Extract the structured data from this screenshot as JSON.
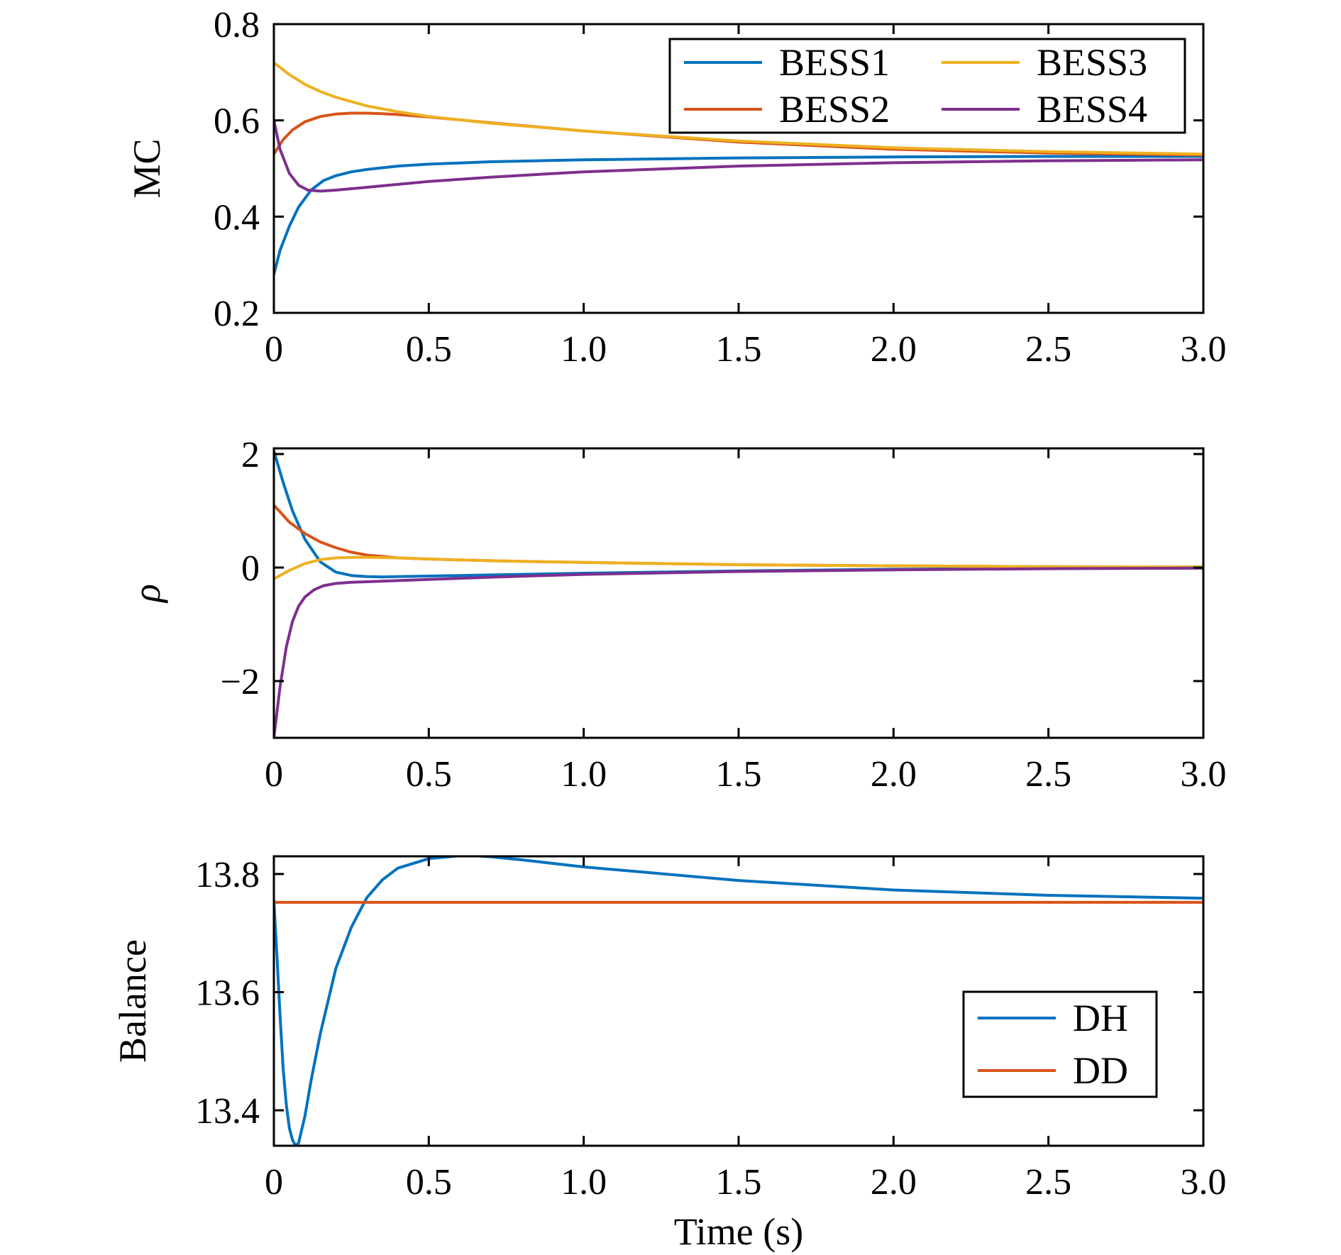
{
  "figure": {
    "xlabel": "Time (s)"
  },
  "chart_data": [
    {
      "type": "line",
      "ylabel": "MC",
      "ylabel_italic": false,
      "xlim": [
        0,
        3.0
      ],
      "ylim": [
        0.2,
        0.8
      ],
      "x_ticks": [
        0,
        0.5,
        1.0,
        1.5,
        2.0,
        2.5,
        3.0
      ],
      "x_tick_labels": [
        "0",
        "0.5",
        "1.0",
        "1.5",
        "2.0",
        "2.5",
        "3.0"
      ],
      "y_ticks": [
        0.2,
        0.4,
        0.6,
        0.8
      ],
      "y_tick_labels": [
        "0.2",
        "0.4",
        "0.6",
        "0.8"
      ],
      "grid": false,
      "legend": {
        "position": "top-right",
        "columns": 2
      },
      "series": [
        {
          "name": "BESS1",
          "color": "#0072BD",
          "x": [
            0,
            0.02,
            0.05,
            0.08,
            0.12,
            0.16,
            0.2,
            0.25,
            0.3,
            0.4,
            0.5,
            0.7,
            1.0,
            1.5,
            2.0,
            2.5,
            3.0
          ],
          "y": [
            0.28,
            0.33,
            0.38,
            0.42,
            0.455,
            0.475,
            0.485,
            0.493,
            0.498,
            0.505,
            0.509,
            0.514,
            0.518,
            0.522,
            0.524,
            0.525,
            0.525
          ]
        },
        {
          "name": "BESS2",
          "color": "#D95319",
          "x": [
            0,
            0.03,
            0.06,
            0.1,
            0.15,
            0.2,
            0.25,
            0.3,
            0.35,
            0.4,
            0.5,
            0.7,
            1.0,
            1.5,
            2.0,
            2.5,
            3.0
          ],
          "y": [
            0.53,
            0.56,
            0.58,
            0.597,
            0.608,
            0.613,
            0.615,
            0.615,
            0.614,
            0.612,
            0.607,
            0.595,
            0.578,
            0.555,
            0.54,
            0.532,
            0.528
          ]
        },
        {
          "name": "BESS3",
          "color": "#EDB120",
          "x": [
            0,
            0.05,
            0.1,
            0.15,
            0.2,
            0.3,
            0.4,
            0.5,
            0.7,
            1.0,
            1.5,
            2.0,
            2.5,
            3.0
          ],
          "y": [
            0.72,
            0.695,
            0.675,
            0.66,
            0.648,
            0.63,
            0.618,
            0.608,
            0.594,
            0.578,
            0.557,
            0.543,
            0.535,
            0.53
          ]
        },
        {
          "name": "BESS4",
          "color": "#7E2F8E",
          "x": [
            0,
            0.02,
            0.05,
            0.08,
            0.11,
            0.15,
            0.2,
            0.25,
            0.3,
            0.4,
            0.5,
            0.7,
            1.0,
            1.5,
            2.0,
            2.5,
            3.0
          ],
          "y": [
            0.6,
            0.54,
            0.49,
            0.465,
            0.455,
            0.453,
            0.455,
            0.458,
            0.461,
            0.467,
            0.473,
            0.482,
            0.493,
            0.505,
            0.512,
            0.516,
            0.518
          ]
        }
      ]
    },
    {
      "type": "line",
      "ylabel": "ρ",
      "ylabel_italic": true,
      "xlim": [
        0,
        3.0
      ],
      "ylim": [
        -3,
        2.1
      ],
      "x_ticks": [
        0,
        0.5,
        1.0,
        1.5,
        2.0,
        2.5,
        3.0
      ],
      "x_tick_labels": [
        "0",
        "0.5",
        "1.0",
        "1.5",
        "2.0",
        "2.5",
        "3.0"
      ],
      "y_ticks": [
        -2,
        0,
        2
      ],
      "y_tick_labels": [
        "−2",
        "0",
        "2"
      ],
      "grid": false,
      "series": [
        {
          "name": "BESS1",
          "color": "#0072BD",
          "x": [
            0,
            0.03,
            0.06,
            0.1,
            0.15,
            0.2,
            0.25,
            0.3,
            0.35,
            0.4,
            0.5,
            0.7,
            1.0,
            1.5,
            2.0,
            2.5,
            3.0
          ],
          "y": [
            2.05,
            1.5,
            1.0,
            0.5,
            0.1,
            -0.08,
            -0.14,
            -0.16,
            -0.165,
            -0.16,
            -0.15,
            -0.13,
            -0.1,
            -0.06,
            -0.03,
            -0.015,
            -0.01
          ]
        },
        {
          "name": "BESS2",
          "color": "#D95319",
          "x": [
            0,
            0.05,
            0.1,
            0.15,
            0.2,
            0.25,
            0.3,
            0.4,
            0.5,
            0.7,
            1.0,
            1.5,
            2.0,
            2.5,
            3.0
          ],
          "y": [
            1.1,
            0.8,
            0.6,
            0.45,
            0.35,
            0.27,
            0.22,
            0.17,
            0.15,
            0.12,
            0.09,
            0.05,
            0.03,
            0.015,
            0.01
          ]
        },
        {
          "name": "BESS3",
          "color": "#EDB120",
          "x": [
            0,
            0.05,
            0.1,
            0.15,
            0.2,
            0.25,
            0.3,
            0.4,
            0.5,
            0.7,
            1.0,
            1.5,
            2.0,
            2.5,
            3.0
          ],
          "y": [
            -0.2,
            -0.05,
            0.07,
            0.14,
            0.17,
            0.18,
            0.18,
            0.17,
            0.15,
            0.12,
            0.09,
            0.05,
            0.03,
            0.015,
            0.01
          ]
        },
        {
          "name": "BESS4",
          "color": "#7E2F8E",
          "x": [
            0,
            0.02,
            0.04,
            0.06,
            0.08,
            0.1,
            0.13,
            0.16,
            0.2,
            0.25,
            0.3,
            0.4,
            0.5,
            0.7,
            1.0,
            1.5,
            2.0,
            2.5,
            3.0
          ],
          "y": [
            -3.0,
            -2.1,
            -1.4,
            -0.95,
            -0.68,
            -0.52,
            -0.39,
            -0.32,
            -0.28,
            -0.26,
            -0.25,
            -0.23,
            -0.21,
            -0.17,
            -0.12,
            -0.07,
            -0.04,
            -0.02,
            -0.01
          ]
        }
      ]
    },
    {
      "type": "line",
      "ylabel": "Balance",
      "ylabel_italic": false,
      "xlim": [
        0,
        3.0
      ],
      "ylim": [
        13.34,
        13.83
      ],
      "x_ticks": [
        0,
        0.5,
        1.0,
        1.5,
        2.0,
        2.5,
        3.0
      ],
      "x_tick_labels": [
        "0",
        "0.5",
        "1.0",
        "1.5",
        "2.0",
        "2.5",
        "3.0"
      ],
      "y_ticks": [
        13.4,
        13.6,
        13.8
      ],
      "y_tick_labels": [
        "13.4",
        "13.6",
        "13.8"
      ],
      "grid": false,
      "legend": {
        "position": "bottom-right",
        "columns": 1
      },
      "series": [
        {
          "name": "DH",
          "color": "#0072BD",
          "x": [
            0,
            0.01,
            0.02,
            0.03,
            0.04,
            0.05,
            0.06,
            0.07,
            0.08,
            0.1,
            0.12,
            0.15,
            0.2,
            0.25,
            0.3,
            0.35,
            0.4,
            0.5,
            0.6,
            0.65,
            0.7,
            0.8,
            1.0,
            1.5,
            2.0,
            2.5,
            3.0
          ],
          "y": [
            13.755,
            13.66,
            13.56,
            13.47,
            13.41,
            13.37,
            13.35,
            13.34,
            13.345,
            13.39,
            13.45,
            13.53,
            13.64,
            13.71,
            13.76,
            13.79,
            13.81,
            13.826,
            13.831,
            13.831,
            13.829,
            13.824,
            13.812,
            13.789,
            13.773,
            13.764,
            13.759
          ]
        },
        {
          "name": "DD",
          "color": "#D95319",
          "x": [
            0,
            3.0
          ],
          "y": [
            13.752,
            13.752
          ]
        }
      ]
    }
  ]
}
